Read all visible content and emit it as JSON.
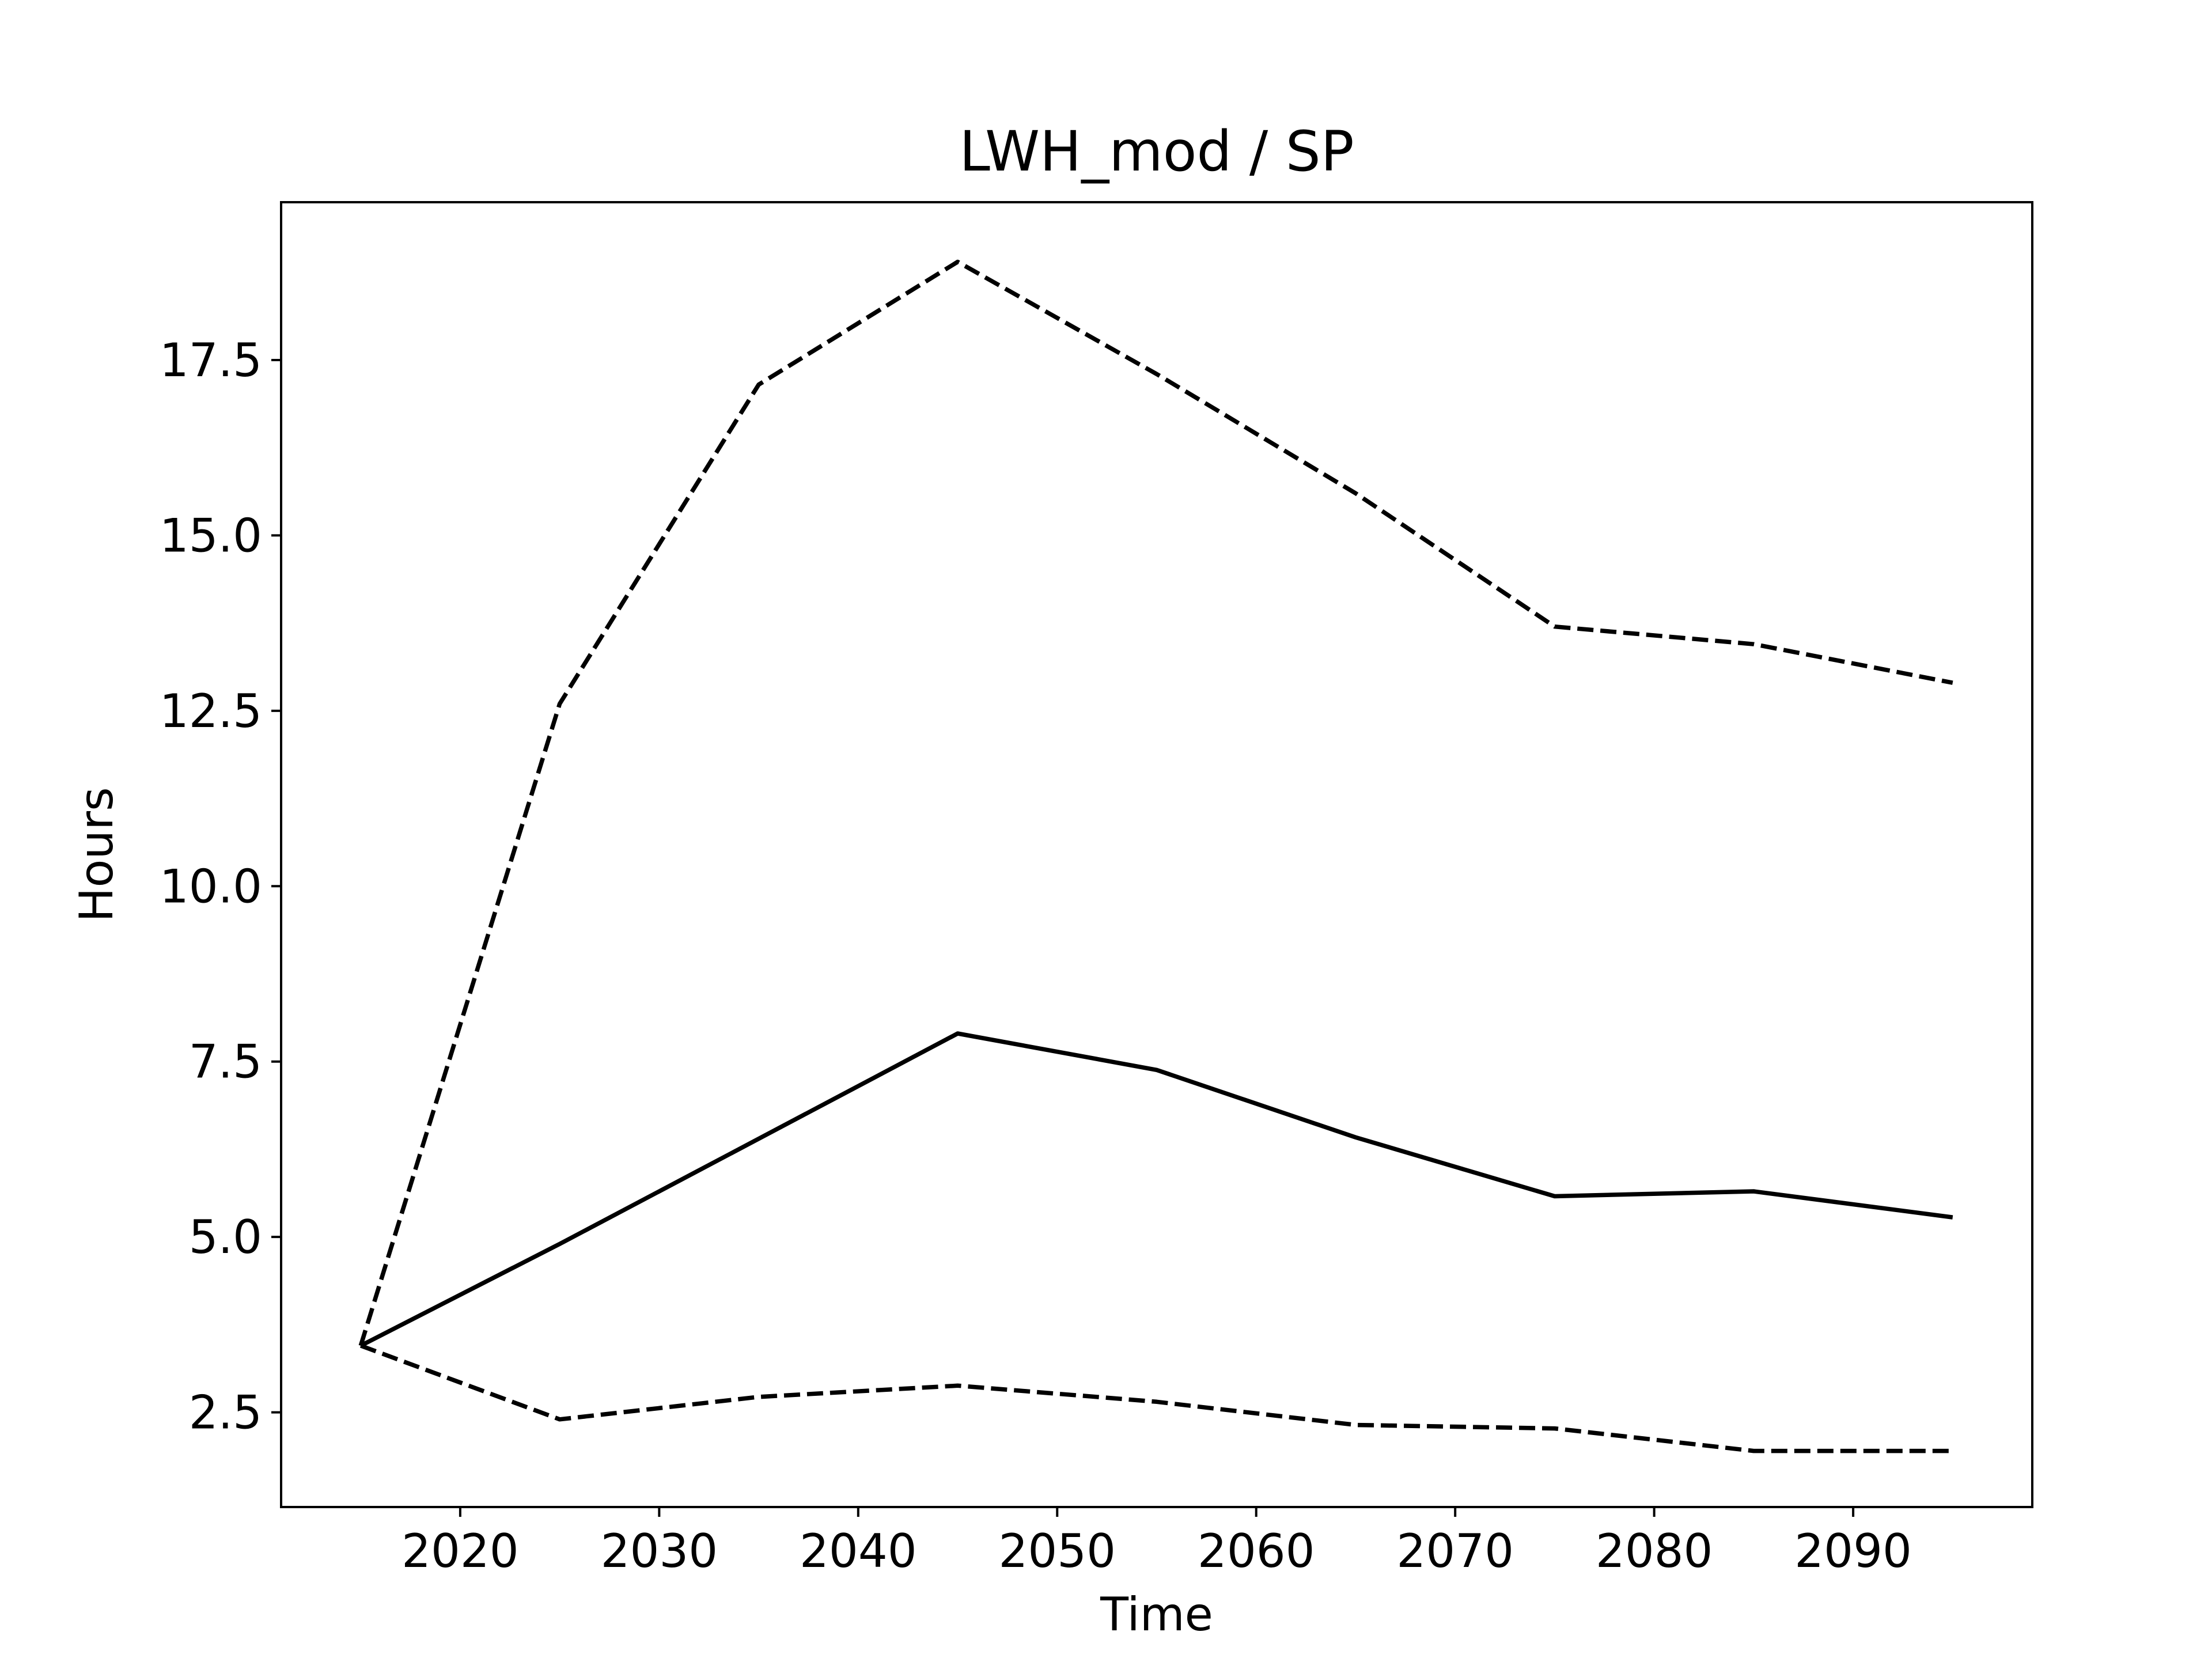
{
  "chart_data": {
    "type": "line",
    "title": "LWH_mod / SP",
    "xlabel": "Time",
    "ylabel": "Hours",
    "xlim": [
      2011,
      2099
    ],
    "ylim": [
      1.15,
      19.75
    ],
    "xticks": [
      2020,
      2030,
      2040,
      2050,
      2060,
      2070,
      2080,
      2090
    ],
    "yticks": [
      2.5,
      5.0,
      7.5,
      10.0,
      12.5,
      15.0,
      17.5
    ],
    "xtick_labels": [
      "2020",
      "2030",
      "2040",
      "2050",
      "2060",
      "2070",
      "2080",
      "2090"
    ],
    "ytick_labels": [
      "2.5",
      "5.0",
      "7.5",
      "10.0",
      "12.5",
      "15.0",
      "17.5"
    ],
    "grid": false,
    "legend": "none",
    "x": [
      2015,
      2025,
      2035,
      2045,
      2055,
      2065,
      2075,
      2085,
      2095
    ],
    "series": [
      {
        "style": "solid",
        "color": "#000000",
        "values": [
          3.45,
          4.9,
          6.4,
          7.9,
          7.38,
          6.42,
          5.58,
          5.65,
          5.28
        ]
      },
      {
        "style": "dashed",
        "color": "#000000",
        "values": [
          3.45,
          12.6,
          17.15,
          18.9,
          17.3,
          15.6,
          13.7,
          13.45,
          12.9
        ]
      },
      {
        "style": "dashed",
        "color": "#000000",
        "values": [
          3.45,
          2.4,
          2.72,
          2.88,
          2.65,
          2.32,
          2.27,
          1.95,
          1.95
        ]
      }
    ]
  }
}
